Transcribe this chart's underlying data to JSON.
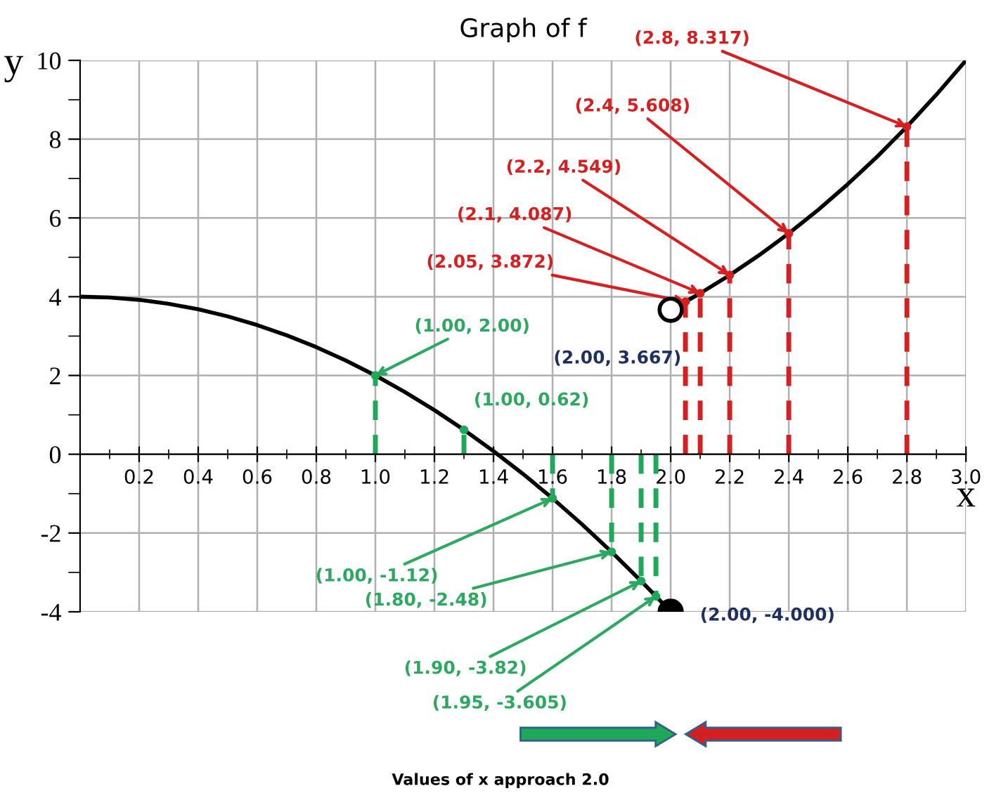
{
  "chart_data": {
    "type": "line",
    "title": "Graph of f",
    "xlabel": "x",
    "ylabel": "y",
    "xlim": [
      0,
      3
    ],
    "ylim": [
      -4,
      10
    ],
    "xticks": [
      {
        "value": 0.1,
        "label": null
      },
      0.2,
      {
        "value": 0.3,
        "label": null
      },
      0.4,
      {
        "value": 0.5,
        "label": null
      },
      0.6,
      {
        "value": 0.7,
        "label": null
      },
      0.8,
      {
        "value": 0.9,
        "label": null
      },
      {
        "value": 1.0,
        "label": "1.0"
      },
      {
        "value": 1.1,
        "label": null
      },
      1.2,
      {
        "value": 1.3,
        "label": null
      },
      1.4,
      {
        "value": 1.5,
        "label": null
      },
      1.6,
      {
        "value": 1.7,
        "label": null
      },
      1.8,
      {
        "value": 1.9,
        "label": null
      },
      {
        "value": 2.0,
        "label": "2.0"
      },
      {
        "value": 2.1,
        "label": null
      },
      2.2,
      {
        "value": 2.3,
        "label": null
      },
      2.4,
      {
        "value": 2.5,
        "label": null
      },
      2.6,
      {
        "value": 2.7,
        "label": null
      },
      2.8,
      {
        "value": 2.9,
        "label": null
      },
      {
        "value": 3.0,
        "label": "3.0"
      }
    ],
    "yticks": [
      -4,
      {
        "value": -3,
        "label": null
      },
      -2,
      {
        "value": -1,
        "label": null
      },
      0,
      {
        "value": 1,
        "label": null
      },
      2,
      {
        "value": 3,
        "label": null
      },
      4,
      {
        "value": 5,
        "label": null
      },
      6,
      {
        "value": 7,
        "label": null
      },
      8,
      {
        "value": 9,
        "label": null
      },
      10
    ],
    "grid": true,
    "series": [
      {
        "type": "line",
        "color": "#000000",
        "marker": "none",
        "line_style": "solid",
        "x": [
          0,
          0.1,
          0.2,
          0.3,
          0.4,
          0.5,
          0.6,
          0.7,
          0.8,
          0.9,
          1.0,
          1.1,
          1.2,
          1.3,
          1.4,
          1.5,
          1.6,
          1.7,
          1.8,
          1.9,
          1.95,
          2.0
        ],
        "values": [
          4,
          3.98,
          3.92,
          3.82,
          3.68,
          3.5,
          3.28,
          3.02,
          2.72,
          2.38,
          2.0,
          1.58,
          1.12,
          0.62,
          0.08,
          -0.5,
          -1.12,
          -1.78,
          -2.48,
          -3.22,
          -3.605,
          -4.0
        ]
      },
      {
        "type": "line",
        "color": "#000000",
        "marker": "none",
        "line_style": "solid",
        "x": [
          2.0,
          2.05,
          2.1,
          2.2,
          2.3,
          2.4,
          2.5,
          2.6,
          2.7,
          2.8,
          2.9,
          3.0
        ],
        "values": [
          3.667,
          3.872,
          4.087,
          4.549,
          5.056,
          5.608,
          6.208,
          6.859,
          7.561,
          8.317,
          9.13,
          10.0
        ]
      },
      {
        "type": "lollipop",
        "color": "#1fa85a",
        "line_style": "dashed",
        "x": [
          1.0,
          1.3,
          1.6,
          1.8,
          1.9,
          1.95
        ],
        "values": [
          2.0,
          0.62,
          -1.12,
          -2.48,
          -3.22,
          -3.605
        ]
      },
      {
        "type": "lollipop",
        "color": "#d42020",
        "line_style": "dashed",
        "x": [
          2.05,
          2.1,
          2.2,
          2.4,
          2.8
        ],
        "values": [
          3.872,
          4.087,
          4.549,
          5.608,
          8.317
        ]
      },
      {
        "type": "scatter",
        "color": "#ffffff",
        "marker": "circle",
        "x": [
          2.0
        ],
        "values": [
          3.667
        ]
      },
      {
        "type": "scatter",
        "color": "#000000",
        "marker": "circle",
        "x": [
          2.0
        ],
        "values": [
          -4.0
        ]
      }
    ],
    "annotations": [
      {
        "text": "(1.00, 2.00)",
        "x": 1.0,
        "y": 2.0
      },
      {
        "text": "(1.00, 0.62)",
        "x": 1.3,
        "y": 0.62
      },
      {
        "text": "(1.00, -1.12)",
        "x": 1.6,
        "y": -1.12
      },
      {
        "text": "(1.80, -2.48)",
        "x": 1.8,
        "y": -2.48
      },
      {
        "text": "(1.90, -3.82)",
        "x": 1.9,
        "y": -3.22
      },
      {
        "text": "(1.95, -3.605)",
        "x": 1.95,
        "y": -3.605
      },
      {
        "text": "(2.05, 3.872)",
        "x": 2.05,
        "y": 3.872
      },
      {
        "text": "(2.1, 4.087)",
        "x": 2.1,
        "y": 4.087
      },
      {
        "text": "(2.2, 4.549)",
        "x": 2.2,
        "y": 4.549
      },
      {
        "text": "(2.4, 5.608)",
        "x": 2.4,
        "y": 5.608
      },
      {
        "text": "(2.8, 8.317)",
        "x": 2.8,
        "y": 8.317
      },
      {
        "text": "(2.00, 3.667)",
        "x": 2.0,
        "y": 3.667
      },
      {
        "text": "(2.00, -4.000)",
        "x": 2.0,
        "y": -4.0
      },
      "Values of x approach 2.0"
    ]
  }
}
